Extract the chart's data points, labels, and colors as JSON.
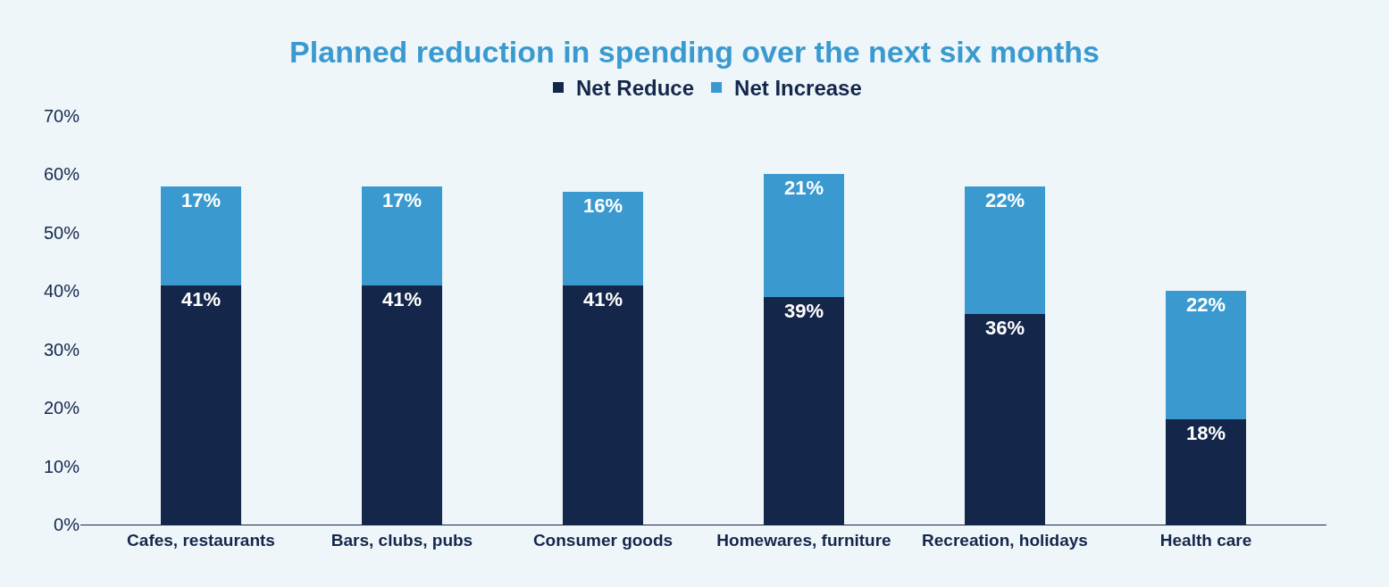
{
  "chart_data": {
    "type": "bar",
    "title": "Planned reduction in spending over the next six months",
    "categories": [
      "Cafes, restaurants",
      "Bars, clubs, pubs",
      "Consumer goods",
      "Homewares, furniture",
      "Recreation, holidays",
      "Health care"
    ],
    "series": [
      {
        "name": "Net Reduce",
        "color": "#14264a",
        "values": [
          41,
          41,
          41,
          39,
          36,
          18
        ],
        "value_labels": [
          "41%",
          "41%",
          "41%",
          "39%",
          "36%",
          "18%"
        ]
      },
      {
        "name": "Net Increase",
        "color": "#3a9ad0",
        "values": [
          17,
          17,
          16,
          21,
          22,
          22
        ],
        "value_labels": [
          "17%",
          "17%",
          "16%",
          "21%",
          "22%",
          "22%"
        ]
      }
    ],
    "stacked": true,
    "legend": "top",
    "grid": false,
    "ylim": [
      0,
      70
    ],
    "yticks": [
      {
        "value": 0,
        "label": "0%"
      },
      {
        "value": 10,
        "label": "10%"
      },
      {
        "value": 20,
        "label": "20%"
      },
      {
        "value": 30,
        "label": "30%"
      },
      {
        "value": 40,
        "label": "40%"
      },
      {
        "value": 50,
        "label": "50%"
      },
      {
        "value": 60,
        "label": "60%"
      },
      {
        "value": 70,
        "label": "70%"
      }
    ]
  }
}
